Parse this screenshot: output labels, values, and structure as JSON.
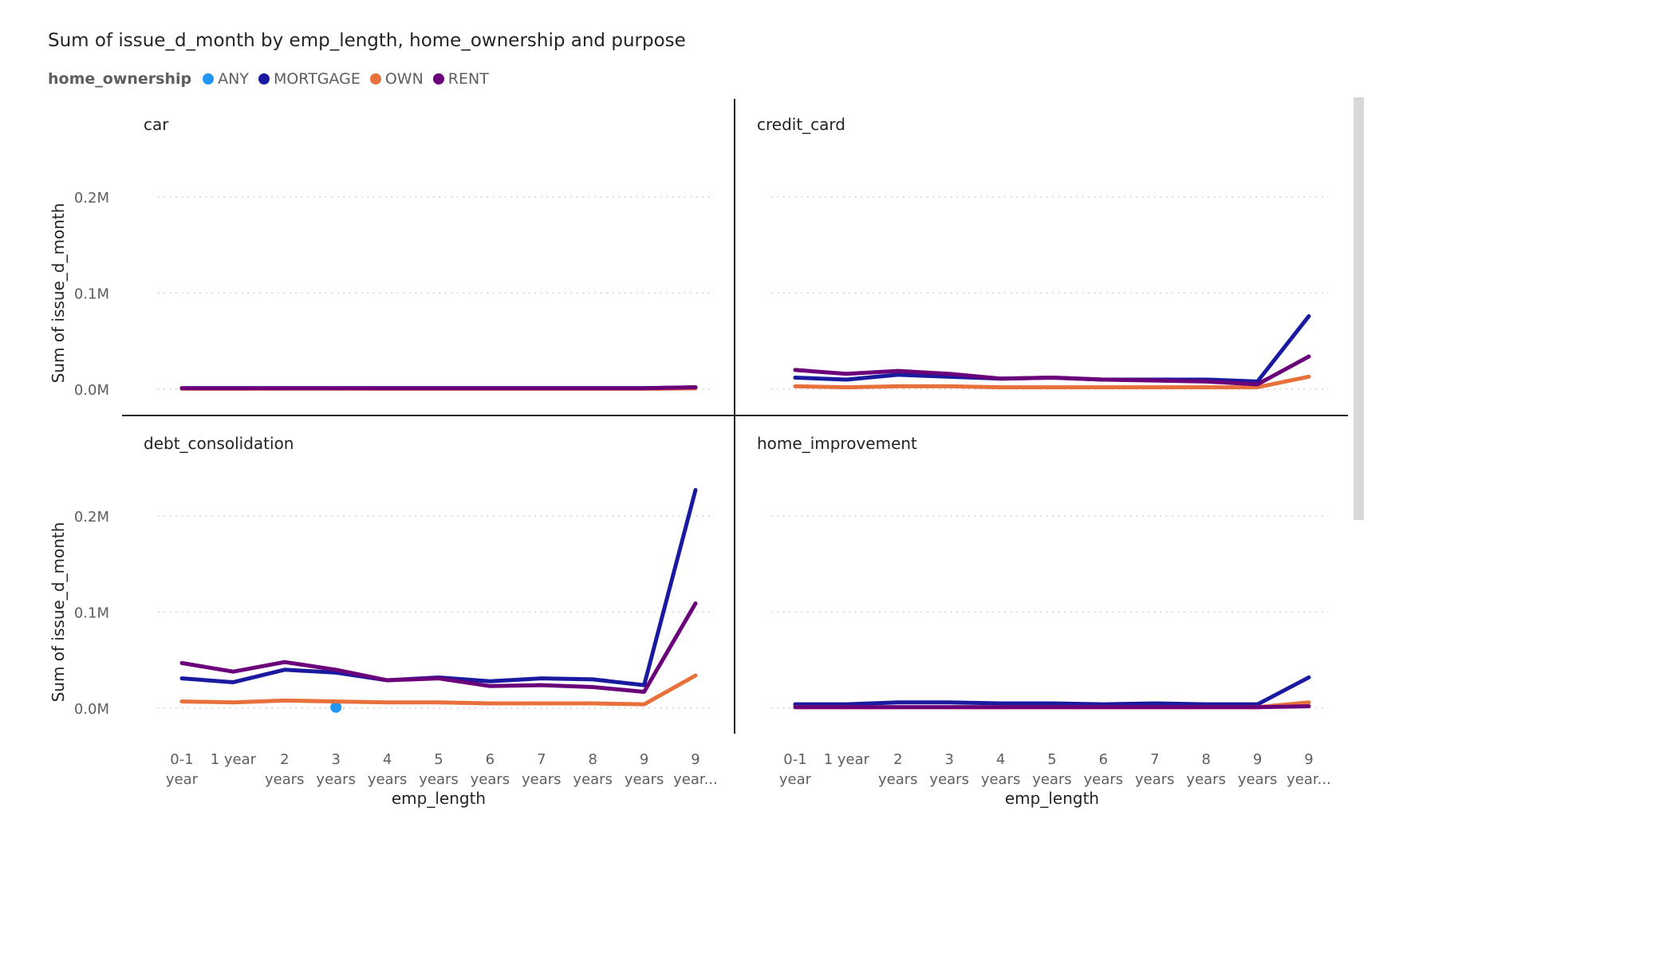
{
  "chart_data": {
    "type": "line",
    "title": "Sum of issue_d_month by emp_length, home_ownership and purpose",
    "legend": {
      "title": "home_ownership",
      "placement": "top-left",
      "entries": [
        {
          "name": "ANY",
          "color": "#2196f3"
        },
        {
          "name": "MORTGAGE",
          "color": "#1a1aa0"
        },
        {
          "name": "OWN",
          "color": "#e8703a"
        },
        {
          "name": "RENT",
          "color": "#6b007b"
        }
      ]
    },
    "xlabel": "emp_length",
    "ylabel": "Sum of issue_d_month",
    "categories": [
      "0-1 year",
      "1 year",
      "2 years",
      "3 years",
      "4 years",
      "5 years",
      "6 years",
      "7 years",
      "8 years",
      "9 years",
      "9 year..."
    ],
    "tick_labels": [
      [
        "0-1",
        "year"
      ],
      [
        "1 year",
        ""
      ],
      [
        "2",
        "years"
      ],
      [
        "3",
        "years"
      ],
      [
        "4",
        "years"
      ],
      [
        "5",
        "years"
      ],
      [
        "6",
        "years"
      ],
      [
        "7",
        "years"
      ],
      [
        "8",
        "years"
      ],
      [
        "9",
        "years"
      ],
      [
        "9",
        "year..."
      ]
    ],
    "yticks": [
      0,
      0.1,
      0.2
    ],
    "ytick_labels": [
      "0.0M",
      "0.1M",
      "0.2M"
    ],
    "ylim": [
      -0.02,
      0.25
    ],
    "grid": true,
    "panels": [
      {
        "name": "car",
        "series": [
          {
            "name": "MORTGAGE",
            "values": [
              0.001,
              0.001,
              0.001,
              0.001,
              0.001,
              0.001,
              0.001,
              0.001,
              0.001,
              0.001,
              0.002
            ]
          },
          {
            "name": "OWN",
            "values": [
              0.0005,
              0.0004,
              0.0005,
              0.0005,
              0.0004,
              0.0004,
              0.0004,
              0.0004,
              0.0004,
              0.0004,
              0.0008
            ]
          },
          {
            "name": "RENT",
            "values": [
              0.001,
              0.001,
              0.001,
              0.001,
              0.001,
              0.001,
              0.001,
              0.001,
              0.001,
              0.001,
              0.002
            ]
          }
        ]
      },
      {
        "name": "credit_card",
        "series": [
          {
            "name": "MORTGAGE",
            "values": [
              0.012,
              0.01,
              0.015,
              0.013,
              0.011,
              0.012,
              0.01,
              0.01,
              0.01,
              0.008,
              0.076
            ]
          },
          {
            "name": "OWN",
            "values": [
              0.003,
              0.002,
              0.003,
              0.003,
              0.002,
              0.002,
              0.002,
              0.002,
              0.002,
              0.002,
              0.013
            ]
          },
          {
            "name": "RENT",
            "values": [
              0.02,
              0.016,
              0.019,
              0.016,
              0.011,
              0.012,
              0.01,
              0.009,
              0.008,
              0.005,
              0.034
            ]
          }
        ]
      },
      {
        "name": "debt_consolidation",
        "series": [
          {
            "name": "ANY",
            "values": [
              null,
              null,
              null,
              0.001,
              null,
              null,
              null,
              null,
              null,
              null,
              null
            ]
          },
          {
            "name": "MORTGAGE",
            "values": [
              0.031,
              0.027,
              0.04,
              0.037,
              0.029,
              0.032,
              0.028,
              0.031,
              0.03,
              0.024,
              0.227
            ]
          },
          {
            "name": "OWN",
            "values": [
              0.007,
              0.006,
              0.008,
              0.007,
              0.006,
              0.006,
              0.005,
              0.005,
              0.005,
              0.004,
              0.034
            ]
          },
          {
            "name": "RENT",
            "values": [
              0.047,
              0.038,
              0.048,
              0.04,
              0.029,
              0.031,
              0.023,
              0.024,
              0.022,
              0.017,
              0.109
            ]
          }
        ]
      },
      {
        "name": "home_improvement",
        "series": [
          {
            "name": "MORTGAGE",
            "values": [
              0.004,
              0.004,
              0.006,
              0.006,
              0.005,
              0.005,
              0.004,
              0.005,
              0.004,
              0.004,
              0.032
            ]
          },
          {
            "name": "OWN",
            "values": [
              0.001,
              0.001,
              0.001,
              0.001,
              0.001,
              0.001,
              0.001,
              0.001,
              0.001,
              0.001,
              0.006
            ]
          },
          {
            "name": "RENT",
            "values": [
              0.001,
              0.001,
              0.001,
              0.001,
              0.001,
              0.001,
              0.001,
              0.001,
              0.001,
              0.001,
              0.002
            ]
          }
        ]
      }
    ]
  }
}
